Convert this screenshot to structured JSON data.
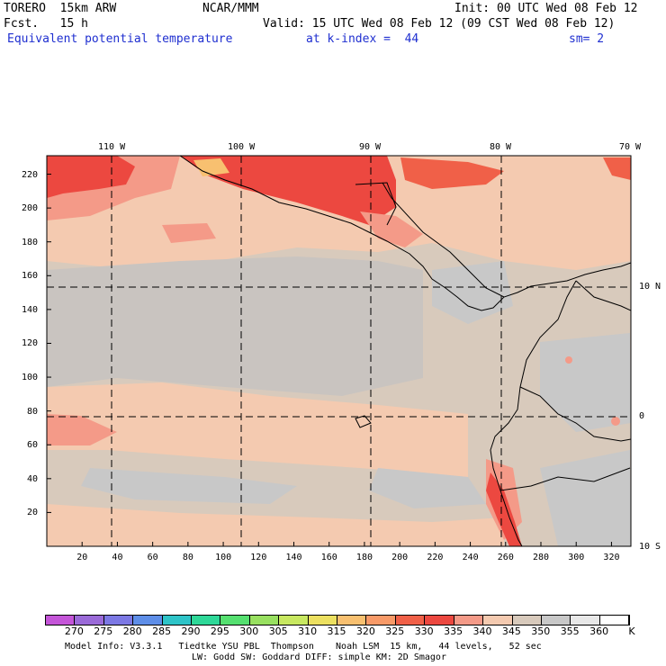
{
  "header": {
    "model": "TORERO  15km ARW",
    "org": "NCAR/MMM",
    "init": "Init: 00 UTC Wed 08 Feb 12",
    "fcst": "Fcst.   15 h",
    "valid": "Valid: 15 UTC Wed 08 Feb 12 (09 CST Wed 08 Feb 12)",
    "field": "Equivalent potential temperature",
    "level": "at k-index =  44",
    "smooth": "sm= 2"
  },
  "map": {
    "lon_labels": [
      "110 W",
      "100 W",
      "90 W",
      "80 W",
      "70 W"
    ],
    "lat_labels": [
      "10 N",
      "0",
      "10 S"
    ],
    "y_ticks": [
      "20",
      "40",
      "60",
      "80",
      "100",
      "120",
      "140",
      "160",
      "180",
      "200",
      "220"
    ],
    "x_ticks": [
      "20",
      "40",
      "60",
      "80",
      "100",
      "120",
      "140",
      "160",
      "180",
      "200",
      "220",
      "240",
      "260",
      "280",
      "300",
      "320"
    ]
  },
  "colorbar": {
    "labels": [
      "270",
      "275",
      "280",
      "285",
      "290",
      "295",
      "300",
      "305",
      "310",
      "315",
      "320",
      "325",
      "330",
      "335",
      "340",
      "345",
      "350",
      "355",
      "360"
    ],
    "unit": "K",
    "colors": [
      "#c455d8",
      "#9a6ad8",
      "#7c78e4",
      "#5e8ee8",
      "#2ec4c8",
      "#2ed898",
      "#55e070",
      "#98e060",
      "#c8e860",
      "#ece060",
      "#f8c070",
      "#f89a68",
      "#f06048",
      "#ec4840",
      "#f49a88",
      "#f4cab0",
      "#d8cabc",
      "#c8c8c8",
      "#e8e8e8",
      "#ffffff"
    ]
  },
  "footer": {
    "line1": "Model Info: V3.3.1   Tiedtke YSU PBL  Thompson    Noah LSM  15 km,   44 levels,   52 sec",
    "line2": "LW: Godd SW: Goddard DIFF: simple KM: 2D Smagor"
  }
}
